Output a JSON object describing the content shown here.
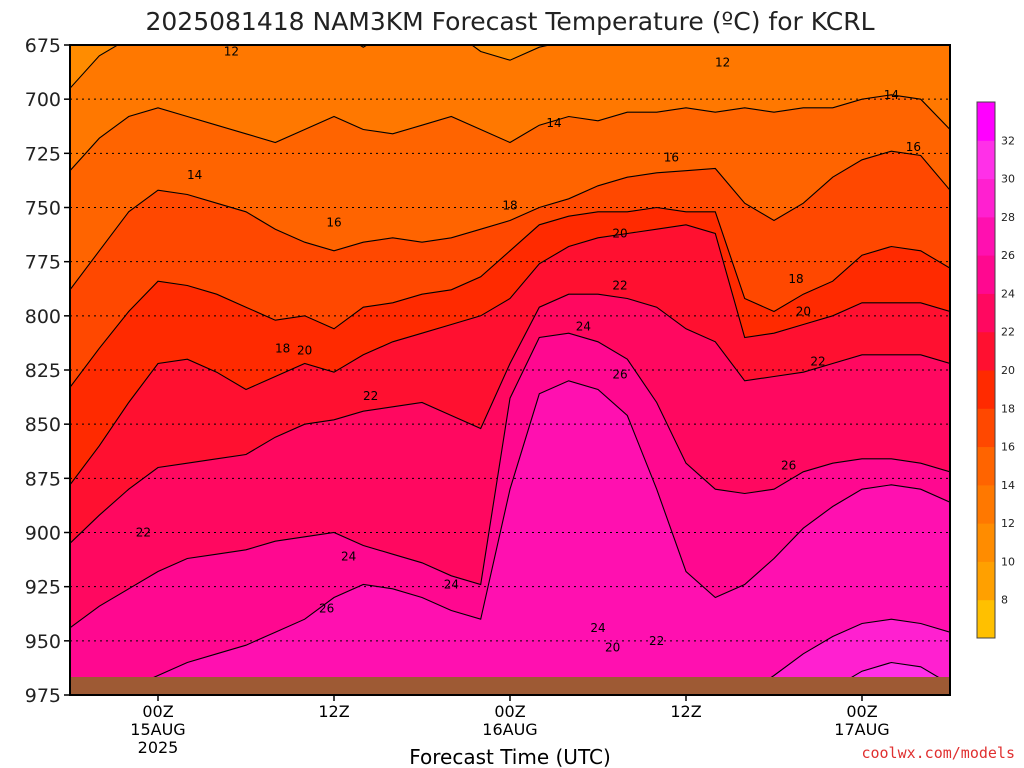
{
  "chart_data": {
    "type": "heatmap",
    "title": "2025081418 NAM3KM Forecast Temperature (ºC) for KCRL",
    "xlabel": "Forecast Time (UTC)",
    "ylabel": "",
    "credit": "coolwx.com/models",
    "y_axis": {
      "ticks": [
        "675",
        "700",
        "725",
        "750",
        "775",
        "800",
        "825",
        "850",
        "875",
        "900",
        "925",
        "950",
        "975"
      ],
      "range": [
        975,
        675
      ],
      "inverted": true
    },
    "x_axis": {
      "ticks": [
        {
          "time": "00Z",
          "date": "15AUG",
          "year": "2025"
        },
        {
          "time": "12Z",
          "date": "",
          "year": ""
        },
        {
          "time": "00Z",
          "date": "16AUG",
          "year": ""
        },
        {
          "time": "12Z",
          "date": "",
          "year": ""
        },
        {
          "time": "00Z",
          "date": "17AUG",
          "year": ""
        }
      ],
      "range_hours": [
        -6,
        54
      ]
    },
    "colorbar": {
      "levels": [
        8,
        10,
        12,
        14,
        16,
        18,
        20,
        22,
        24,
        26,
        28,
        30,
        32
      ],
      "colors": [
        "#ffc000",
        "#ffa000",
        "#ff8c00",
        "#ff7800",
        "#ff6400",
        "#ff4800",
        "#ff2a00",
        "#ff1030",
        "#ff0860",
        "#ff0890",
        "#ff10b0",
        "#ff20d0",
        "#ff30e8",
        "#ff00ff"
      ]
    },
    "contour_labels": [
      {
        "text": "12",
        "hour": 5,
        "p": 678
      },
      {
        "text": "12",
        "hour": 38.5,
        "p": 683
      },
      {
        "text": "14",
        "hour": 2.5,
        "p": 735
      },
      {
        "text": "14",
        "hour": 27,
        "p": 711
      },
      {
        "text": "14",
        "hour": 50,
        "p": 698
      },
      {
        "text": "16",
        "hour": 12,
        "p": 757
      },
      {
        "text": "16",
        "hour": 35,
        "p": 727
      },
      {
        "text": "16",
        "hour": 51.5,
        "p": 722
      },
      {
        "text": "18",
        "hour": 8.5,
        "p": 815
      },
      {
        "text": "18",
        "hour": 24,
        "p": 749
      },
      {
        "text": "18",
        "hour": 43.5,
        "p": 783
      },
      {
        "text": "20",
        "hour": 10,
        "p": 816
      },
      {
        "text": "20",
        "hour": 31.5,
        "p": 762
      },
      {
        "text": "20",
        "hour": 44,
        "p": 798
      },
      {
        "text": "20",
        "hour": 31,
        "p": 953
      },
      {
        "text": "22",
        "hour": -1,
        "p": 900
      },
      {
        "text": "22",
        "hour": 14.5,
        "p": 837
      },
      {
        "text": "22",
        "hour": 31.5,
        "p": 786
      },
      {
        "text": "22",
        "hour": 45,
        "p": 821
      },
      {
        "text": "22",
        "hour": 34,
        "p": 950
      },
      {
        "text": "24",
        "hour": 13,
        "p": 911
      },
      {
        "text": "24",
        "hour": 20,
        "p": 924
      },
      {
        "text": "24",
        "hour": 29,
        "p": 805
      },
      {
        "text": "24",
        "hour": 30,
        "p": 944
      },
      {
        "text": "26",
        "hour": 11.5,
        "p": 935
      },
      {
        "text": "26",
        "hour": 31.5,
        "p": 827
      },
      {
        "text": "26",
        "hour": 43,
        "p": 869
      }
    ],
    "ground": {
      "color": "#9e5a34"
    },
    "grid": "dotted horizontal at each pressure level"
  }
}
